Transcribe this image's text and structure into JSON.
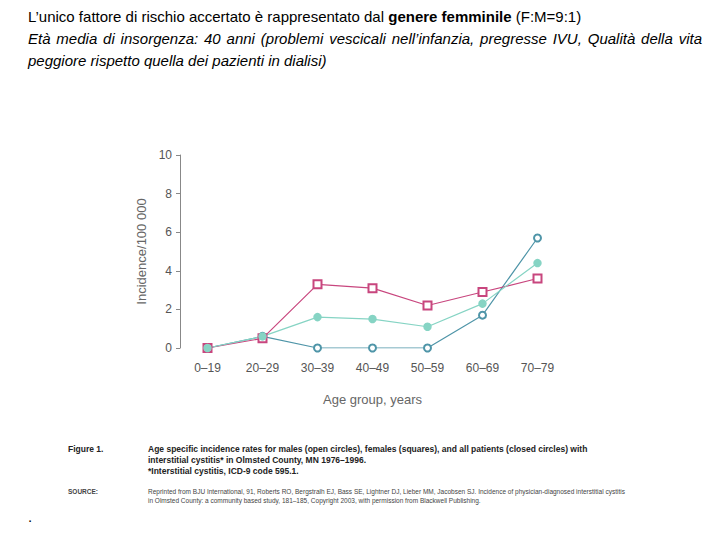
{
  "header": {
    "line1": [
      {
        "text": "L’unico fattore di rischio accertato è rappresentato dal ",
        "bold": false
      },
      {
        "text": "genere femminile",
        "bold": true
      },
      {
        "text": " (F:M=9:1)",
        "bold": false
      }
    ],
    "line2": "Età media di insorgenza: 40 anni (problemi vescicali nell’infanzia, pregresse IVU, Qualità della vita peggiore rispetto quella dei pazienti in dialisi)"
  },
  "chart_data": {
    "type": "line",
    "x_label": "Age group, years",
    "y_label": "Incidence/100 000",
    "categories": [
      "0–19",
      "20–29",
      "30–39",
      "40–49",
      "50–59",
      "60–69",
      "70–79"
    ],
    "series": [
      {
        "name": "males",
        "color": "#4f95a8",
        "marker": "open_circle",
        "values": [
          0,
          0.6,
          0,
          0,
          0,
          1.7,
          5.7
        ]
      },
      {
        "name": "females",
        "color": "#c8467e",
        "marker": "open_square",
        "values": [
          0,
          0.5,
          3.3,
          3.1,
          2.2,
          2.9,
          3.6
        ]
      },
      {
        "name": "all patients",
        "color": "#86d4c4",
        "marker": "circle",
        "values": [
          0,
          0.6,
          1.6,
          1.5,
          1.1,
          2.3,
          4.4
        ]
      }
    ],
    "ylim": [
      0,
      10
    ],
    "yticks": [
      0,
      2,
      4,
      6,
      8,
      10
    ],
    "grid": false
  },
  "caption": {
    "label": "Figure 1.",
    "text": "Age specific incidence rates for males (open circles), females (squares), and all patients (closed circles) with interstitial cystitis* in Olmsted County, MN 1976–1996.",
    "footnote": "*Interstitial cystitis, ICD-9 code 595.1."
  },
  "source": {
    "label": "SOURCE:",
    "text": "Reprinted from BJU International, 91, Roberts RO, Bergstralh EJ, Bass SE, Lightner DJ, Lieber MM, Jacobsen SJ. Incidence of physician-diagnosed interstitial cystitis in Olmsted County: a community based study, 181–185, Copyright 2003, with permission from Blackwell Publishing."
  },
  "mark": "."
}
